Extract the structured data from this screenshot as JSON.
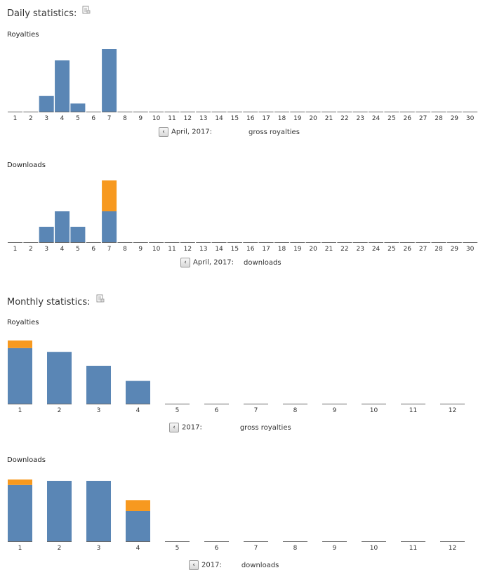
{
  "colors": {
    "primary": "#5a86b5",
    "secondary": "#f7991f",
    "baseline": "#666666"
  },
  "daily": {
    "title": "Daily statistics:",
    "export_icon": "export-icon"
  },
  "monthly": {
    "title": "Monthly statistics:",
    "export_icon": "export-icon"
  },
  "chart_data": [
    {
      "type": "bar",
      "title": "Royalties",
      "categories": [
        "1",
        "2",
        "3",
        "4",
        "5",
        "6",
        "7",
        "8",
        "9",
        "10",
        "11",
        "12",
        "13",
        "14",
        "15",
        "16",
        "17",
        "18",
        "19",
        "20",
        "21",
        "22",
        "23",
        "24",
        "25",
        "26",
        "27",
        "28",
        "29",
        "30"
      ],
      "series": [
        {
          "name": "primary",
          "values": [
            0,
            0,
            2.5,
            8.2,
            1.3,
            0,
            10,
            0,
            0,
            0,
            0,
            0,
            0,
            0,
            0,
            0,
            0,
            0,
            0,
            0,
            0,
            0,
            0,
            0,
            0,
            0,
            0,
            0,
            0,
            0
          ]
        },
        {
          "name": "secondary",
          "values": [
            0,
            0,
            0,
            0,
            0,
            0,
            0,
            0,
            0,
            0,
            0,
            0,
            0,
            0,
            0,
            0,
            0,
            0,
            0,
            0,
            0,
            0,
            0,
            0,
            0,
            0,
            0,
            0,
            0,
            0
          ]
        }
      ],
      "ylim": [
        0,
        10
      ],
      "nav": {
        "prev": "‹",
        "period": "April, 2017:",
        "metric": "gross royalties"
      }
    },
    {
      "type": "bar",
      "title": "Downloads",
      "categories": [
        "1",
        "2",
        "3",
        "4",
        "5",
        "6",
        "7",
        "8",
        "9",
        "10",
        "11",
        "12",
        "13",
        "14",
        "15",
        "16",
        "17",
        "18",
        "19",
        "20",
        "21",
        "22",
        "23",
        "24",
        "25",
        "26",
        "27",
        "28",
        "29",
        "30"
      ],
      "series": [
        {
          "name": "primary",
          "values": [
            0,
            0,
            1,
            2,
            1,
            0,
            2,
            0,
            0,
            0,
            0,
            0,
            0,
            0,
            0,
            0,
            0,
            0,
            0,
            0,
            0,
            0,
            0,
            0,
            0,
            0,
            0,
            0,
            0,
            0
          ]
        },
        {
          "name": "secondary",
          "values": [
            0,
            0,
            0,
            0,
            0,
            0,
            2,
            0,
            0,
            0,
            0,
            0,
            0,
            0,
            0,
            0,
            0,
            0,
            0,
            0,
            0,
            0,
            0,
            0,
            0,
            0,
            0,
            0,
            0,
            0
          ]
        }
      ],
      "ylim": [
        0,
        4
      ],
      "nav": {
        "prev": "‹",
        "period": "April, 2017:",
        "metric": "downloads"
      }
    },
    {
      "type": "bar",
      "title": "Royalties",
      "categories": [
        "1",
        "2",
        "3",
        "4",
        "5",
        "6",
        "7",
        "8",
        "9",
        "10",
        "11",
        "12"
      ],
      "series": [
        {
          "name": "primary",
          "values": [
            88,
            82,
            60,
            36,
            0,
            0,
            0,
            0,
            0,
            0,
            0,
            0
          ]
        },
        {
          "name": "secondary",
          "values": [
            12,
            0,
            0,
            0,
            0,
            0,
            0,
            0,
            0,
            0,
            0,
            0
          ]
        }
      ],
      "ylim": [
        0,
        100
      ],
      "nav": {
        "prev": "‹",
        "period": "2017:",
        "metric": "gross royalties"
      }
    },
    {
      "type": "bar",
      "title": "Downloads",
      "categories": [
        "1",
        "2",
        "3",
        "4",
        "5",
        "6",
        "7",
        "8",
        "9",
        "10",
        "11",
        "12"
      ],
      "series": [
        {
          "name": "primary",
          "values": [
            82,
            88,
            88,
            44,
            0,
            0,
            0,
            0,
            0,
            0,
            0,
            0
          ]
        },
        {
          "name": "secondary",
          "values": [
            8,
            0,
            0,
            16,
            0,
            0,
            0,
            0,
            0,
            0,
            0,
            0
          ]
        }
      ],
      "ylim": [
        0,
        90
      ],
      "nav": {
        "prev": "‹",
        "period": "2017:",
        "metric": "downloads"
      }
    }
  ]
}
